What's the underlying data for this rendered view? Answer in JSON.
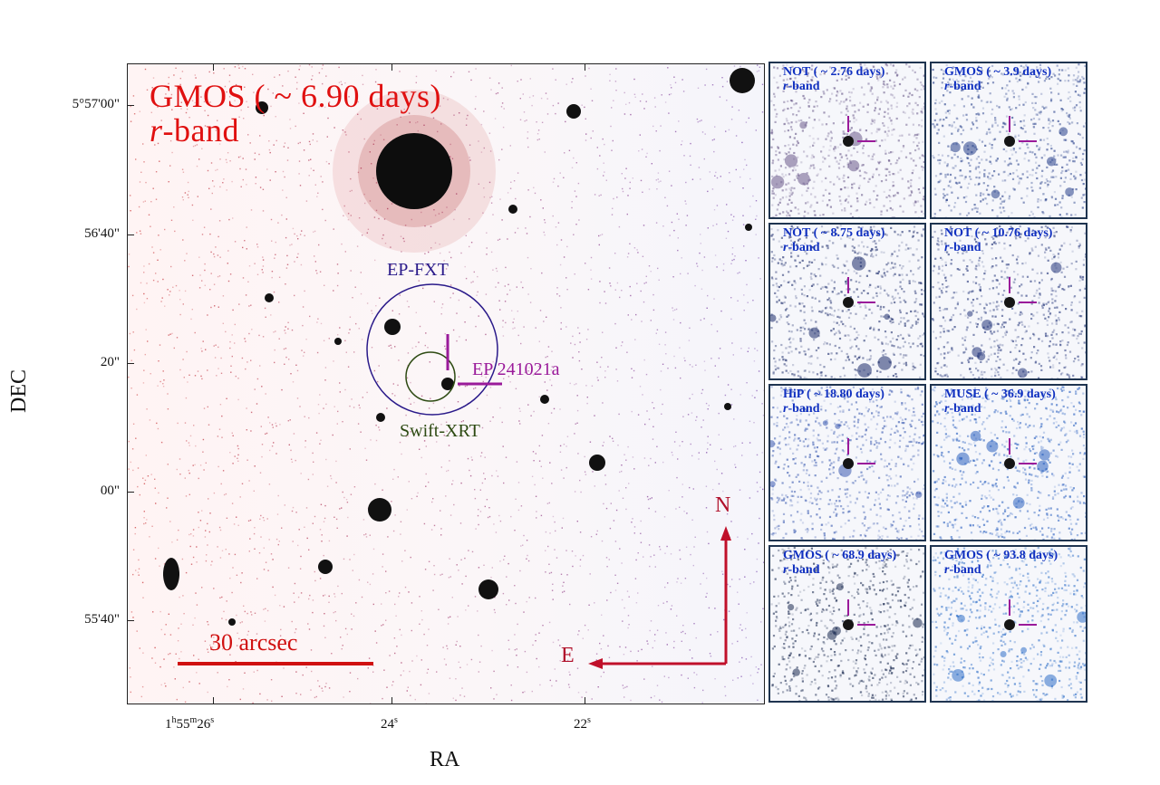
{
  "main_image": {
    "title_line1": "GMOS ( ~ 6.90 days)",
    "band_italic": "r",
    "band_suffix": "-band",
    "labels": {
      "ep_fxt": "EP-FXT",
      "swift_xrt": "Swift-XRT",
      "source": "EP 241021a"
    },
    "scale_bar": "30 arcsec",
    "compass": {
      "north": "N",
      "east": "E"
    }
  },
  "axes": {
    "y_title": "DEC",
    "x_title": "RA",
    "y_ticks": [
      "5°57'00\"",
      "56'40\"",
      "20\"",
      "00\"",
      "55'40\""
    ],
    "x_ticks": {
      "t1_main": "1",
      "t1_h": "h",
      "t1_mid": "55",
      "t1_m": "m",
      "t1_sec": "26",
      "t1_s": "s",
      "t2": "24",
      "t2_s": "s",
      "t3": "22",
      "t3_s": "s"
    }
  },
  "panels": [
    {
      "title": "NOT ( ~ 2.76 days)",
      "band_italic": "r",
      "band_suffix": "-band",
      "tint": "#6a5a8a"
    },
    {
      "title": "GMOS ( ~ 3.9 days)",
      "band_italic": "r",
      "band_suffix": "-band",
      "tint": "#27408b"
    },
    {
      "title": "NOT ( ~ 8.75 days)",
      "band_italic": "r",
      "band_suffix": "-band",
      "tint": "#1a2a6a"
    },
    {
      "title": "NOT ( ~ 10.76 days)",
      "band_italic": "r",
      "band_suffix": "-band",
      "tint": "#23357a"
    },
    {
      "title": "HiP ( ~ 18.80 days)",
      "band_italic": "r",
      "band_suffix": "-band",
      "tint": "#3a5ab0"
    },
    {
      "title": "MUSE ( ~ 36.9 days)",
      "band_italic": "r",
      "band_suffix": "-band",
      "tint": "#2a60c0"
    },
    {
      "title": "GMOS ( ~ 68.9 days)",
      "band_italic": "r",
      "band_suffix": "-band",
      "tint": "#1a2a50"
    },
    {
      "title": "GMOS ( ~ 93.8 days)",
      "band_italic": "r",
      "band_suffix": "-band",
      "tint": "#2f6fc8"
    }
  ],
  "colors": {
    "title_red": "#e01010",
    "fxt_circle": "#2a1a8a",
    "xrt_circle": "#2d4a12",
    "marker": "#9a1a9a",
    "scale": "#d01010",
    "panel_title": "#1030c0"
  }
}
